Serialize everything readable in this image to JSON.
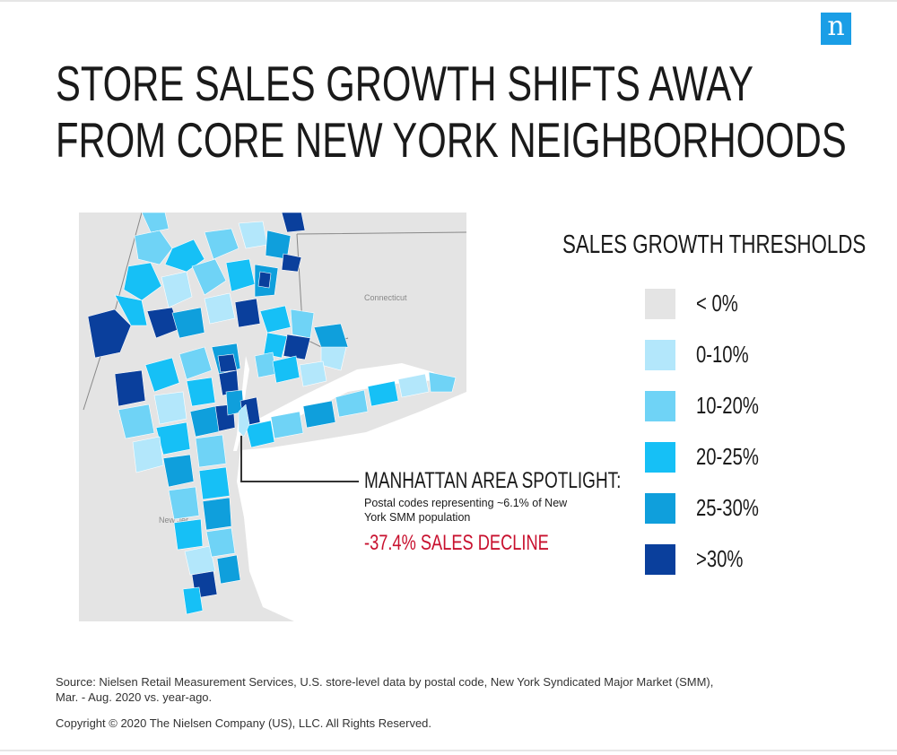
{
  "brand": {
    "logo_letter": "n",
    "logo_color": "#1a9ee6"
  },
  "title": {
    "line1": "STORE SALES GROWTH SHIFTS AWAY",
    "line2": "FROM CORE NEW YORK NEIGHBORHOODS"
  },
  "map": {
    "state_labels": {
      "connecticut": "Connecticut",
      "new_jersey": "New Jer"
    },
    "land_color": "#e3e3e3",
    "water_color": "#ffffff"
  },
  "legend": {
    "title": "SALES GROWTH THRESHOLDS",
    "items": [
      {
        "label": "< 0%",
        "color": "#e4e4e4"
      },
      {
        "label": "0-10%",
        "color": "#b3e7fb"
      },
      {
        "label": "10-20%",
        "color": "#6fd3f6"
      },
      {
        "label": "20-25%",
        "color": "#16c0f6"
      },
      {
        "label": "25-30%",
        "color": "#0f9fdc"
      },
      {
        "label": ">30%",
        "color": "#0a3f9c"
      }
    ]
  },
  "callout": {
    "heading": "MANHATTAN AREA SPOTLIGHT:",
    "text": "Postal codes representing ~6.1% of New York SMM population",
    "decline": "-37.4% SALES DECLINE",
    "decline_color": "#c8102e"
  },
  "footer": {
    "source": "Source: Nielsen Retail Measurement Services, U.S. store-level data by postal code, New York Syndicated Major Market (SMM), Mar. - Aug. 2020 vs. year-ago.",
    "copyright": "Copyright © 2020 The Nielsen Company (US), LLC. All Rights Reserved."
  }
}
